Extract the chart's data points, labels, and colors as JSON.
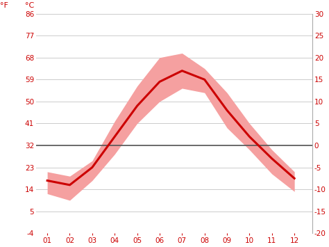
{
  "months": [
    1,
    2,
    3,
    4,
    5,
    6,
    7,
    8,
    9,
    10,
    11,
    12
  ],
  "month_labels": [
    "01",
    "02",
    "03",
    "04",
    "05",
    "06",
    "07",
    "08",
    "09",
    "10",
    "11",
    "12"
  ],
  "temp_mean": [
    -8.0,
    -9.0,
    -5.0,
    2.0,
    9.0,
    14.5,
    17.0,
    15.0,
    8.0,
    2.0,
    -3.0,
    -7.5
  ],
  "temp_max": [
    -6.0,
    -7.0,
    -3.5,
    5.5,
    13.5,
    20.0,
    21.0,
    17.5,
    12.0,
    5.0,
    -1.0,
    -6.0
  ],
  "temp_min": [
    -11.0,
    -12.5,
    -8.0,
    -2.0,
    5.0,
    10.0,
    13.0,
    12.0,
    4.0,
    -1.0,
    -6.5,
    -10.5
  ],
  "line_color": "#cc0000",
  "band_color": "#f5a0a0",
  "zero_line_color": "#555555",
  "grid_color": "#cccccc",
  "text_color": "#cc0000",
  "bg_color": "#ffffff",
  "ylim": [
    -20,
    30
  ],
  "yticks_c": [
    -20,
    -15,
    -10,
    -5,
    0,
    5,
    10,
    15,
    20,
    25,
    30
  ],
  "yticks_f": [
    -4,
    5,
    14,
    23,
    32,
    41,
    50,
    59,
    68,
    77,
    86
  ],
  "ylabel_c": "°C",
  "ylabel_f": "°F",
  "figsize": [
    4.74,
    3.55
  ],
  "dpi": 100
}
